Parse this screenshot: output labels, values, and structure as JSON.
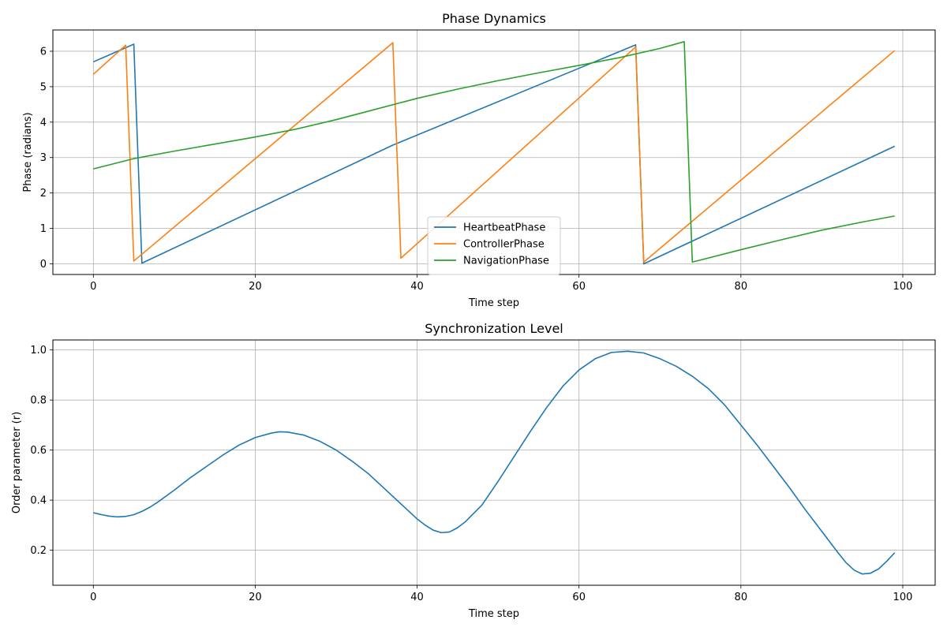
{
  "chart_data": [
    {
      "type": "line",
      "title": "Phase Dynamics",
      "xlabel": "Time step",
      "ylabel": "Phase (radians)",
      "xlim": [
        -5,
        104
      ],
      "ylim": [
        -0.3,
        6.6
      ],
      "xticks": [
        0,
        20,
        40,
        60,
        80,
        100
      ],
      "yticks": [
        0,
        1,
        2,
        3,
        4,
        5,
        6
      ],
      "grid": true,
      "legend_position": "lower center",
      "series": [
        {
          "name": "HeartbeatPhase",
          "color": "#1f77b4",
          "points": [
            [
              0,
              5.7
            ],
            [
              5,
              6.2
            ],
            [
              6,
              0.02
            ],
            [
              37,
              3.35
            ],
            [
              67,
              6.18
            ],
            [
              68,
              0.0
            ],
            [
              99,
              3.32
            ]
          ]
        },
        {
          "name": "ControllerPhase",
          "color": "#ff7f0e",
          "points": [
            [
              0,
              5.35
            ],
            [
              4,
              6.17
            ],
            [
              5,
              0.08
            ],
            [
              37,
              6.24
            ],
            [
              38,
              0.16
            ],
            [
              67,
              6.12
            ],
            [
              68,
              0.05
            ],
            [
              99,
              6.02
            ]
          ]
        },
        {
          "name": "NavigationPhase",
          "color": "#2ca02c",
          "points": [
            [
              0,
              2.68
            ],
            [
              5,
              2.97
            ],
            [
              10,
              3.18
            ],
            [
              15,
              3.38
            ],
            [
              20,
              3.58
            ],
            [
              25,
              3.8
            ],
            [
              30,
              4.07
            ],
            [
              35,
              4.37
            ],
            [
              40,
              4.67
            ],
            [
              45,
              4.93
            ],
            [
              50,
              5.17
            ],
            [
              55,
              5.39
            ],
            [
              60,
              5.6
            ],
            [
              65,
              5.82
            ],
            [
              70,
              6.08
            ],
            [
              73,
              6.27
            ],
            [
              74,
              0.05
            ],
            [
              80,
              0.4
            ],
            [
              85,
              0.68
            ],
            [
              90,
              0.95
            ],
            [
              95,
              1.18
            ],
            [
              99,
              1.35
            ]
          ]
        }
      ]
    },
    {
      "type": "line",
      "title": "Synchronization Level",
      "xlabel": "Time step",
      "ylabel": "Order parameter (r)",
      "xlim": [
        -5,
        104
      ],
      "ylim": [
        0.06,
        1.04
      ],
      "xticks": [
        0,
        20,
        40,
        60,
        80,
        100
      ],
      "yticks": [
        0.2,
        0.4,
        0.6,
        0.8,
        1.0
      ],
      "grid": true,
      "series": [
        {
          "color": "#1f77b4",
          "points": [
            [
              0,
              0.35
            ],
            [
              1,
              0.342
            ],
            [
              2,
              0.336
            ],
            [
              3,
              0.333
            ],
            [
              4,
              0.335
            ],
            [
              5,
              0.342
            ],
            [
              6,
              0.355
            ],
            [
              7,
              0.372
            ],
            [
              8,
              0.393
            ],
            [
              10,
              0.44
            ],
            [
              12,
              0.49
            ],
            [
              14,
              0.535
            ],
            [
              16,
              0.58
            ],
            [
              18,
              0.62
            ],
            [
              20,
              0.65
            ],
            [
              22,
              0.668
            ],
            [
              23,
              0.673
            ],
            [
              24,
              0.672
            ],
            [
              26,
              0.66
            ],
            [
              28,
              0.635
            ],
            [
              30,
              0.6
            ],
            [
              32,
              0.555
            ],
            [
              34,
              0.505
            ],
            [
              36,
              0.445
            ],
            [
              38,
              0.385
            ],
            [
              40,
              0.325
            ],
            [
              41,
              0.3
            ],
            [
              42,
              0.28
            ],
            [
              43,
              0.27
            ],
            [
              44,
              0.273
            ],
            [
              45,
              0.29
            ],
            [
              46,
              0.315
            ],
            [
              48,
              0.38
            ],
            [
              50,
              0.475
            ],
            [
              52,
              0.575
            ],
            [
              54,
              0.675
            ],
            [
              56,
              0.77
            ],
            [
              58,
              0.855
            ],
            [
              60,
              0.92
            ],
            [
              62,
              0.965
            ],
            [
              64,
              0.99
            ],
            [
              66,
              0.995
            ],
            [
              68,
              0.988
            ],
            [
              70,
              0.965
            ],
            [
              72,
              0.935
            ],
            [
              74,
              0.895
            ],
            [
              76,
              0.845
            ],
            [
              78,
              0.78
            ],
            [
              80,
              0.7
            ],
            [
              82,
              0.62
            ],
            [
              84,
              0.535
            ],
            [
              86,
              0.45
            ],
            [
              88,
              0.36
            ],
            [
              90,
              0.275
            ],
            [
              92,
              0.19
            ],
            [
              93,
              0.15
            ],
            [
              94,
              0.12
            ],
            [
              95,
              0.105
            ],
            [
              96,
              0.108
            ],
            [
              97,
              0.125
            ],
            [
              98,
              0.155
            ],
            [
              99,
              0.19
            ]
          ]
        }
      ]
    }
  ]
}
